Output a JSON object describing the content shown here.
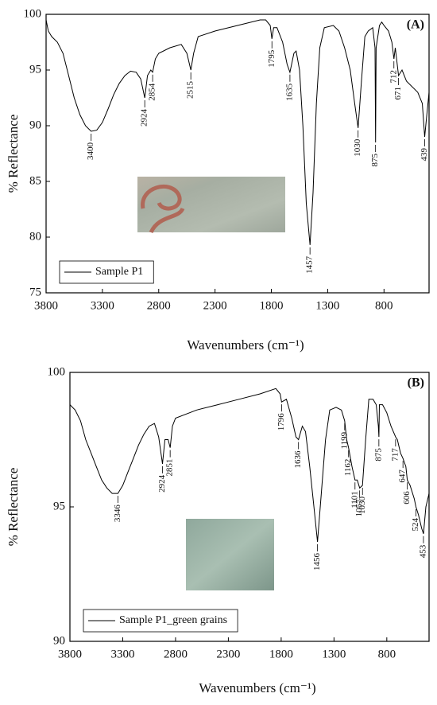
{
  "chart_data": [
    {
      "type": "line",
      "panel_label": "(A)",
      "xlabel": "Wavenumbers (cm⁻¹)",
      "ylabel": "% Reflectance",
      "xlim": [
        3800,
        400
      ],
      "ylim": [
        75,
        100
      ],
      "xticks": [
        3800,
        3300,
        2800,
        2300,
        1800,
        1300,
        800
      ],
      "yticks": [
        75,
        80,
        85,
        90,
        95,
        100
      ],
      "legend": "lower left",
      "x": [
        3800,
        3780,
        3750,
        3700,
        3650,
        3600,
        3550,
        3500,
        3450,
        3400,
        3350,
        3300,
        3250,
        3200,
        3150,
        3100,
        3050,
        3000,
        2960,
        2924,
        2900,
        2870,
        2854,
        2830,
        2800,
        2700,
        2600,
        2550,
        2515,
        2490,
        2450,
        2300,
        2100,
        1900,
        1850,
        1810,
        1795,
        1780,
        1750,
        1700,
        1660,
        1635,
        1600,
        1580,
        1550,
        1520,
        1490,
        1457,
        1430,
        1400,
        1370,
        1330,
        1250,
        1200,
        1150,
        1100,
        1060,
        1030,
        1000,
        970,
        940,
        900,
        880,
        875,
        870,
        840,
        820,
        800,
        760,
        730,
        712,
        700,
        671,
        640,
        600,
        500,
        460,
        439,
        420,
        400
      ],
      "series": [
        {
          "name": "Sample P1",
          "color": "#000000",
          "values": [
            99.5,
            98.5,
            98,
            97.5,
            96.5,
            94.5,
            92.5,
            91,
            90,
            89.5,
            89.6,
            90.3,
            91.5,
            92.8,
            93.8,
            94.5,
            94.9,
            94.8,
            94.2,
            92.5,
            94.5,
            95,
            94.8,
            96,
            96.5,
            97,
            97.3,
            96.5,
            95,
            96.5,
            98,
            98.5,
            99,
            99.5,
            99.5,
            99,
            97.8,
            98.8,
            98.8,
            97.5,
            95.5,
            94.8,
            96.5,
            96.7,
            95,
            90,
            83,
            79.3,
            84,
            92,
            97,
            98.8,
            99,
            98.5,
            97,
            95,
            92,
            89.8,
            94,
            98,
            98.5,
            98.8,
            97,
            88.5,
            97,
            99,
            99.3,
            99,
            98.5,
            97.5,
            96,
            97,
            94.5,
            95,
            94,
            93,
            92,
            89,
            91,
            93
          ]
        }
      ],
      "peaks": [
        {
          "x": 3400,
          "y": 89.5
        },
        {
          "x": 2924,
          "y": 92.5
        },
        {
          "x": 2854,
          "y": 94.8
        },
        {
          "x": 2515,
          "y": 95
        },
        {
          "x": 1795,
          "y": 97.8
        },
        {
          "x": 1635,
          "y": 94.8
        },
        {
          "x": 1457,
          "y": 79.3
        },
        {
          "x": 1030,
          "y": 89.8
        },
        {
          "x": 875,
          "y": 88.5
        },
        {
          "x": 712,
          "y": 96
        },
        {
          "x": 671,
          "y": 94.5
        },
        {
          "x": 439,
          "y": 89
        }
      ]
    },
    {
      "type": "line",
      "panel_label": "(B)",
      "xlabel": "Wavenumbers (cm⁻¹)",
      "ylabel": "% Reflectance",
      "xlim": [
        3800,
        400
      ],
      "ylim": [
        90,
        100
      ],
      "xticks": [
        3800,
        3300,
        2800,
        2300,
        1800,
        1300,
        800
      ],
      "yticks": [
        90,
        95,
        100
      ],
      "legend": "lower left",
      "x": [
        3800,
        3750,
        3700,
        3650,
        3600,
        3550,
        3500,
        3450,
        3400,
        3346,
        3300,
        3250,
        3200,
        3150,
        3100,
        3050,
        3000,
        2960,
        2924,
        2900,
        2870,
        2851,
        2830,
        2800,
        2600,
        2400,
        2200,
        2000,
        1850,
        1810,
        1796,
        1750,
        1700,
        1660,
        1636,
        1600,
        1570,
        1530,
        1490,
        1456,
        1420,
        1380,
        1340,
        1280,
        1230,
        1199,
        1180,
        1162,
        1130,
        1101,
        1080,
        1057,
        1030,
        1000,
        970,
        930,
        900,
        880,
        875,
        870,
        840,
        800,
        760,
        717,
        700,
        670,
        647,
        620,
        606,
        580,
        540,
        524,
        500,
        470,
        453,
        430,
        400
      ],
      "series": [
        {
          "name": "Sample P1_green grains",
          "color": "#000000",
          "values": [
            98.8,
            98.6,
            98.2,
            97.5,
            97,
            96.5,
            96,
            95.7,
            95.5,
            95.5,
            95.8,
            96.3,
            96.8,
            97.3,
            97.7,
            98,
            98.1,
            97.6,
            96.6,
            97.5,
            97.5,
            97.2,
            98,
            98.3,
            98.6,
            98.8,
            99,
            99.2,
            99.4,
            99.2,
            98.9,
            99,
            98.3,
            97.6,
            97.5,
            98,
            97.8,
            96.5,
            95,
            93.7,
            95.5,
            97.5,
            98.6,
            98.7,
            98.6,
            98.2,
            97.5,
            97.2,
            96.5,
            96,
            96,
            95.7,
            95.8,
            97.5,
            99,
            99,
            98.8,
            98,
            97.6,
            98.8,
            98.8,
            98.5,
            98,
            97.6,
            97.5,
            97,
            96.8,
            96.5,
            96,
            95.8,
            95.3,
            95,
            94.7,
            94.2,
            94,
            95,
            95.5
          ]
        }
      ],
      "peaks": [
        {
          "x": 3346,
          "y": 95.5
        },
        {
          "x": 2924,
          "y": 96.6
        },
        {
          "x": 2851,
          "y": 97.2
        },
        {
          "x": 1796,
          "y": 98.9
        },
        {
          "x": 1636,
          "y": 97.5
        },
        {
          "x": 1456,
          "y": 93.7
        },
        {
          "x": 1199,
          "y": 98.2
        },
        {
          "x": 1162,
          "y": 97.2
        },
        {
          "x": 1101,
          "y": 96
        },
        {
          "x": 1057,
          "y": 95.7
        },
        {
          "x": 1030,
          "y": 95.8
        },
        {
          "x": 875,
          "y": 97.6
        },
        {
          "x": 717,
          "y": 97.6
        },
        {
          "x": 647,
          "y": 96.8
        },
        {
          "x": 606,
          "y": 96
        },
        {
          "x": 524,
          "y": 95
        },
        {
          "x": 453,
          "y": 94
        }
      ]
    }
  ]
}
